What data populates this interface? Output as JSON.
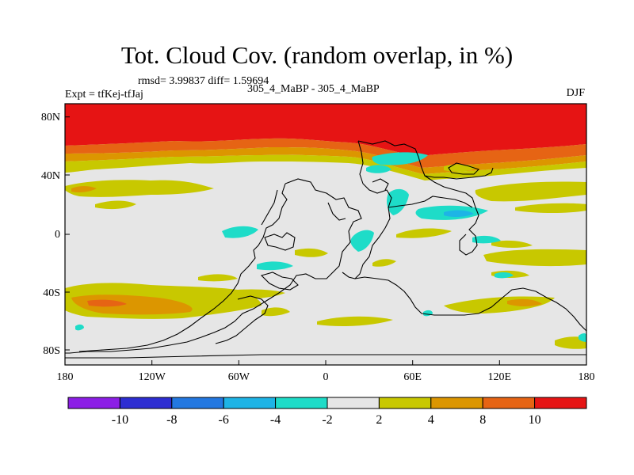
{
  "title": "Tot. Cloud Cov. (random overlap, in %)",
  "stats_line": "rmsd= 3.99837 diff= 1.59694",
  "experiment_label": "Expt = tfKej-tfJaj",
  "runs_label": "305_4_MaBP - 305_4_MaBP",
  "season_label": "DJF",
  "map": {
    "lon_ticks": [
      "180",
      "120W",
      "60W",
      "0",
      "60E",
      "120E",
      "180"
    ],
    "lat_ticks": [
      "80N",
      "40N",
      "0",
      "40S",
      "80S"
    ],
    "lon_range": [
      -180,
      180
    ],
    "lat_range": [
      -90,
      90
    ],
    "background_color": "#e6e6e6"
  },
  "colorbar": {
    "colors": [
      "#8c1ee6",
      "#2d2dd2",
      "#2378e1",
      "#1eb4e6",
      "#1edcc8",
      "#e6e6e6",
      "#c8c800",
      "#dc9600",
      "#e66414",
      "#e61414"
    ],
    "labels": [
      "-10",
      "-8",
      "-6",
      "-4",
      "-2",
      "2",
      "4",
      "8",
      "10"
    ]
  }
}
